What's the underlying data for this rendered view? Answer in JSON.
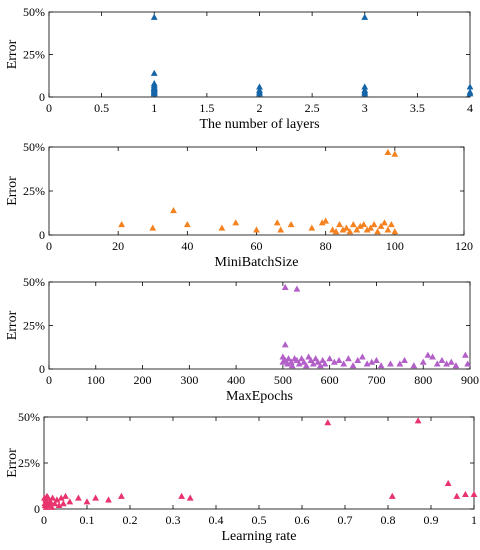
{
  "chart_data": [
    {
      "type": "scatter",
      "xlabel": "The number of layers",
      "ylabel": "Error",
      "xlim": [
        0,
        4
      ],
      "ylim": [
        0,
        50
      ],
      "xticks": [
        0,
        0.5,
        1,
        1.5,
        2,
        2.5,
        3,
        3.5,
        4
      ],
      "yticks": [
        0,
        25,
        50
      ],
      "yticklabels": [
        "0",
        "25%",
        "50%"
      ],
      "marker": "triangle",
      "color": "#1565a8",
      "points": [
        [
          1,
          47
        ],
        [
          1,
          14
        ],
        [
          1,
          8
        ],
        [
          1,
          7
        ],
        [
          1,
          6
        ],
        [
          1,
          5.5
        ],
        [
          1,
          5
        ],
        [
          1,
          4.5
        ],
        [
          1,
          4
        ],
        [
          1,
          3.5
        ],
        [
          1,
          3
        ],
        [
          1,
          2.5
        ],
        [
          1,
          2
        ],
        [
          2,
          6
        ],
        [
          2,
          4
        ],
        [
          2,
          3
        ],
        [
          2,
          2
        ],
        [
          3,
          47
        ],
        [
          3,
          6
        ],
        [
          3,
          4
        ],
        [
          3,
          3
        ],
        [
          3,
          2
        ],
        [
          4,
          6
        ],
        [
          4,
          3
        ],
        [
          4,
          2
        ]
      ]
    },
    {
      "type": "scatter",
      "xlabel": "MiniBatchSize",
      "ylabel": "Error",
      "xlim": [
        0,
        120
      ],
      "ylim": [
        0,
        50
      ],
      "xticks": [
        0,
        20,
        40,
        60,
        80,
        100,
        120
      ],
      "yticks": [
        0,
        25,
        50
      ],
      "yticklabels": [
        "0",
        "25%",
        "50%"
      ],
      "marker": "triangle",
      "color": "#f5821f",
      "points": [
        [
          21,
          6
        ],
        [
          30,
          4
        ],
        [
          36,
          14
        ],
        [
          40,
          6
        ],
        [
          50,
          4
        ],
        [
          54,
          7
        ],
        [
          60,
          3
        ],
        [
          66,
          7
        ],
        [
          67,
          3
        ],
        [
          70,
          6
        ],
        [
          76,
          4
        ],
        [
          79,
          7
        ],
        [
          80,
          8
        ],
        [
          82,
          3
        ],
        [
          83,
          2
        ],
        [
          84,
          6
        ],
        [
          85,
          3
        ],
        [
          86,
          4
        ],
        [
          87,
          2
        ],
        [
          88,
          6
        ],
        [
          89,
          3
        ],
        [
          90,
          5
        ],
        [
          91,
          6
        ],
        [
          92,
          3
        ],
        [
          93,
          4
        ],
        [
          94,
          6
        ],
        [
          95,
          2
        ],
        [
          96,
          5
        ],
        [
          97,
          7
        ],
        [
          98,
          47
        ],
        [
          98,
          3
        ],
        [
          99,
          6
        ],
        [
          100,
          46
        ],
        [
          100,
          2
        ]
      ]
    },
    {
      "type": "scatter",
      "xlabel": "MaxEpochs",
      "ylabel": "Error",
      "xlim": [
        0,
        900
      ],
      "ylim": [
        0,
        50
      ],
      "xticks": [
        0,
        100,
        200,
        300,
        400,
        500,
        600,
        700,
        800,
        900
      ],
      "yticks": [
        0,
        25,
        50
      ],
      "yticklabels": [
        "0",
        "25%",
        "50%"
      ],
      "marker": "triangle",
      "color": "#b25fc8",
      "points": [
        [
          505,
          47
        ],
        [
          530,
          46
        ],
        [
          505,
          14
        ],
        [
          500,
          7
        ],
        [
          500,
          4
        ],
        [
          505,
          5
        ],
        [
          510,
          3
        ],
        [
          512,
          6
        ],
        [
          518,
          4
        ],
        [
          520,
          2
        ],
        [
          525,
          6
        ],
        [
          530,
          5
        ],
        [
          535,
          3
        ],
        [
          540,
          6
        ],
        [
          545,
          4
        ],
        [
          550,
          2
        ],
        [
          555,
          7
        ],
        [
          560,
          5
        ],
        [
          565,
          3
        ],
        [
          570,
          6
        ],
        [
          575,
          4
        ],
        [
          580,
          2
        ],
        [
          585,
          5
        ],
        [
          590,
          3
        ],
        [
          600,
          6
        ],
        [
          610,
          4
        ],
        [
          620,
          5
        ],
        [
          630,
          3
        ],
        [
          640,
          6
        ],
        [
          650,
          2
        ],
        [
          660,
          5
        ],
        [
          670,
          7
        ],
        [
          680,
          3
        ],
        [
          690,
          4
        ],
        [
          700,
          5
        ],
        [
          710,
          2
        ],
        [
          730,
          3
        ],
        [
          750,
          3
        ],
        [
          760,
          5
        ],
        [
          780,
          2
        ],
        [
          800,
          4
        ],
        [
          810,
          8
        ],
        [
          820,
          7
        ],
        [
          830,
          3
        ],
        [
          840,
          5
        ],
        [
          850,
          3
        ],
        [
          860,
          4
        ],
        [
          870,
          2
        ],
        [
          890,
          8
        ],
        [
          895,
          3
        ]
      ]
    },
    {
      "type": "scatter",
      "xlabel": "Learning rate",
      "ylabel": "Error",
      "xlim": [
        0,
        1
      ],
      "ylim": [
        0,
        50
      ],
      "xticks": [
        0,
        0.1,
        0.2,
        0.3,
        0.4,
        0.5,
        0.6,
        0.7,
        0.8,
        0.9,
        1
      ],
      "yticks": [
        0,
        25,
        50
      ],
      "yticklabels": [
        "0",
        "25%",
        "50%"
      ],
      "marker": "triangle",
      "color": "#e8336e",
      "points": [
        [
          0.001,
          6
        ],
        [
          0.002,
          3
        ],
        [
          0.003,
          2
        ],
        [
          0.004,
          5
        ],
        [
          0.005,
          1
        ],
        [
          0.006,
          4
        ],
        [
          0.007,
          7
        ],
        [
          0.008,
          2
        ],
        [
          0.01,
          6
        ],
        [
          0.012,
          3
        ],
        [
          0.015,
          4
        ],
        [
          0.018,
          1
        ],
        [
          0.02,
          6
        ],
        [
          0.025,
          3
        ],
        [
          0.03,
          5
        ],
        [
          0.035,
          2
        ],
        [
          0.04,
          6
        ],
        [
          0.045,
          3
        ],
        [
          0.05,
          7
        ],
        [
          0.06,
          4
        ],
        [
          0.08,
          6
        ],
        [
          0.1,
          4
        ],
        [
          0.12,
          6
        ],
        [
          0.15,
          5
        ],
        [
          0.18,
          7
        ],
        [
          0.32,
          7
        ],
        [
          0.34,
          6
        ],
        [
          0.66,
          47
        ],
        [
          0.81,
          7
        ],
        [
          0.87,
          48
        ],
        [
          0.94,
          14
        ],
        [
          0.96,
          7
        ],
        [
          0.98,
          8
        ],
        [
          1.0,
          8
        ]
      ]
    }
  ]
}
